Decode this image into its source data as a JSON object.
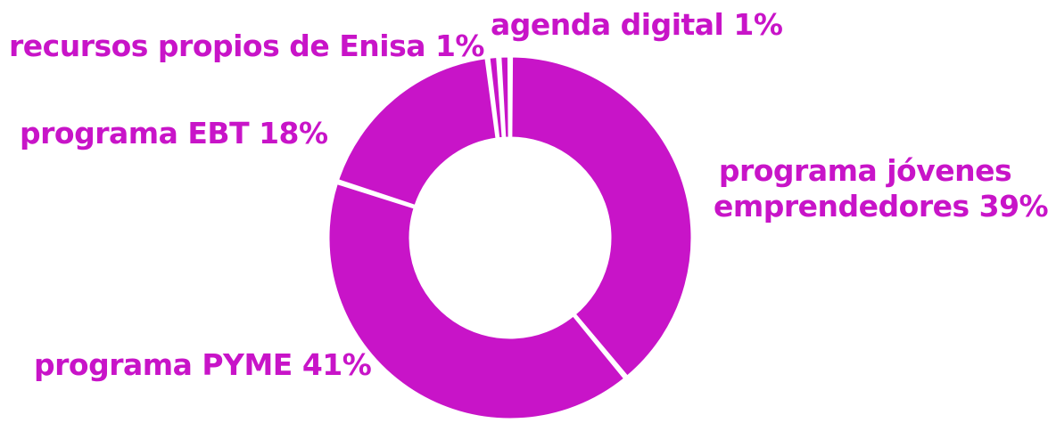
{
  "chart_data": {
    "type": "pie",
    "donut": true,
    "slices": [
      {
        "label": "programa jóvenes emprendedores",
        "percent_text": "39%",
        "value": 39
      },
      {
        "label": "programa PYME",
        "percent_text": "41%",
        "value": 41
      },
      {
        "label": "programa EBT",
        "percent_text": "18%",
        "value": 18
      },
      {
        "label": "recursos propios de Enisa",
        "percent_text": "1%",
        "value": 1
      },
      {
        "label": "agenda digital",
        "percent_text": "1%",
        "value": 1
      }
    ],
    "color": "#c814c8",
    "labels": {
      "jovenes_line1": "programa jóvenes",
      "jovenes_line2": "emprendedores 39%",
      "pyme": "programa PYME 41%",
      "ebt": "programa EBT 18%",
      "recursos": "recursos propios de Enisa 1%",
      "agenda": "agenda digital 1%"
    }
  }
}
